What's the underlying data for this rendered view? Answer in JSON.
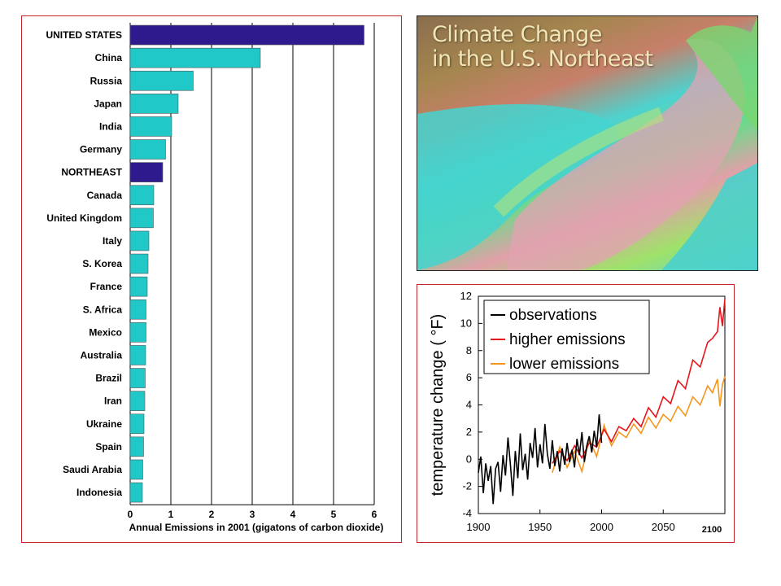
{
  "colors": {
    "frame": "#c0292b",
    "highlight_bar": "#2e1a8c",
    "bar": "#20c8c8",
    "observations": "#000000",
    "higher": "#e8141c",
    "lower": "#f5961e"
  },
  "map": {
    "title_line1": "Climate Change",
    "title_line2": "in the U.S. Northeast"
  },
  "chart_data": [
    {
      "type": "bar",
      "orientation": "horizontal",
      "categories": [
        "UNITED STATES",
        "China",
        "Russia",
        "Japan",
        "India",
        "Germany",
        "NORTHEAST",
        "Canada",
        "United Kingdom",
        "Italy",
        "S. Korea",
        "France",
        "S. Africa",
        "Mexico",
        "Australia",
        "Brazil",
        "Iran",
        "Ukraine",
        "Spain",
        "Saudi Arabia",
        "Indonesia"
      ],
      "values": [
        5.75,
        3.2,
        1.55,
        1.18,
        1.02,
        0.87,
        0.8,
        0.58,
        0.57,
        0.46,
        0.44,
        0.42,
        0.39,
        0.39,
        0.38,
        0.37,
        0.36,
        0.34,
        0.33,
        0.31,
        0.3
      ],
      "highlighted": [
        "UNITED STATES",
        "NORTHEAST"
      ],
      "xlabel": "Annual  Emissions in 2001 (gigatons of carbon dioxide)",
      "xlim": [
        0,
        6
      ],
      "xticks": [
        "0",
        "1",
        "2",
        "3",
        "4",
        "5",
        "6"
      ],
      "grid": "vertical"
    },
    {
      "type": "line",
      "ylabel": "temperature change  ( °F)",
      "xlim": [
        1900,
        2100
      ],
      "ylim": [
        -4,
        12
      ],
      "xticks": [
        "1900",
        "1950",
        "2000",
        "2050",
        "2100"
      ],
      "yticks": [
        "-4",
        "-2",
        "0",
        "2",
        "4",
        "6",
        "8",
        "10",
        "12"
      ],
      "legend_position": "top-left",
      "series": [
        {
          "name": "observations",
          "x": [
            1900,
            1902,
            1904,
            1906,
            1908,
            1910,
            1912,
            1914,
            1916,
            1918,
            1920,
            1922,
            1924,
            1926,
            1928,
            1930,
            1932,
            1934,
            1936,
            1938,
            1940,
            1942,
            1944,
            1946,
            1948,
            1950,
            1952,
            1954,
            1956,
            1958,
            1960,
            1962,
            1964,
            1966,
            1968,
            1970,
            1972,
            1974,
            1976,
            1978,
            1980,
            1982,
            1984,
            1986,
            1988,
            1990,
            1992,
            1994,
            1996,
            1998,
            2000
          ],
          "y": [
            -1.0,
            0.2,
            -2.5,
            -0.3,
            -1.6,
            -0.5,
            -3.3,
            -0.7,
            -0.2,
            -2.4,
            0.3,
            -1.2,
            1.6,
            -0.4,
            -2.7,
            0.6,
            -1.4,
            1.9,
            -0.8,
            0.4,
            -1.5,
            1.2,
            0.1,
            2.3,
            -0.6,
            1.1,
            -0.3,
            2.6,
            0.4,
            -0.7,
            1.4,
            -0.5,
            0.6,
            -0.9,
            0.8,
            -0.4,
            1.2,
            -0.2,
            0.7,
            -0.6,
            1.5,
            0.3,
            2.0,
            -0.2,
            1.0,
            1.7,
            0.5,
            2.1,
            0.9,
            3.3,
            1.2
          ]
        },
        {
          "name": "higher emissions",
          "x": [
            1960,
            1966,
            1972,
            1978,
            1984,
            1990,
            1996,
            2002,
            2008,
            2014,
            2020,
            2026,
            2032,
            2038,
            2044,
            2050,
            2056,
            2062,
            2068,
            2074,
            2080,
            2086,
            2090,
            2094,
            2096,
            2098,
            2100
          ],
          "y": [
            -0.3,
            0.6,
            -0.1,
            1.0,
            0.1,
            1.2,
            0.9,
            2.2,
            1.3,
            2.4,
            2.1,
            3.0,
            2.4,
            3.8,
            3.1,
            4.6,
            4.1,
            5.8,
            5.2,
            7.3,
            6.8,
            8.6,
            8.9,
            9.4,
            11.2,
            9.8,
            11.8
          ]
        },
        {
          "name": "lower emissions",
          "x": [
            1960,
            1966,
            1972,
            1978,
            1984,
            1990,
            1996,
            2002,
            2008,
            2014,
            2020,
            2026,
            2032,
            2038,
            2044,
            2050,
            2056,
            2062,
            2068,
            2074,
            2080,
            2086,
            2090,
            2094,
            2096,
            2098,
            2100
          ],
          "y": [
            -1.0,
            0.9,
            -0.6,
            0.6,
            -0.9,
            1.5,
            0.2,
            2.5,
            1.0,
            2.0,
            1.6,
            2.6,
            1.9,
            3.1,
            2.3,
            3.3,
            2.8,
            3.9,
            3.2,
            4.6,
            4.0,
            5.4,
            4.9,
            5.9,
            3.9,
            5.5,
            6.1
          ]
        }
      ]
    }
  ]
}
